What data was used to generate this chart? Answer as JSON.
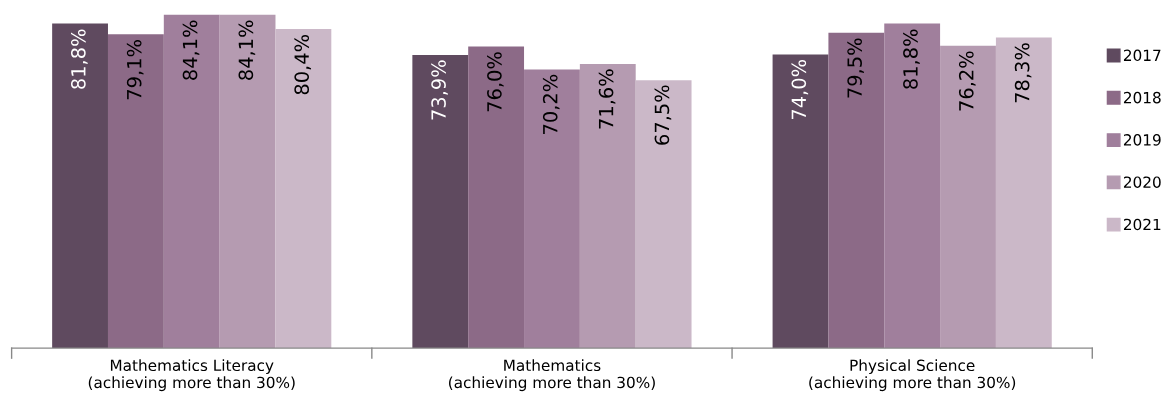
{
  "chart_data": {
    "type": "bar",
    "categories": [
      "Mathematics Literacy\n(achieving more than 30%)",
      "Mathematics\n(achieving more than 30%)",
      "Physical Science\n(achieving more than 30%)"
    ],
    "series": [
      {
        "name": "2017",
        "color": "#5f4a5f",
        "values": [
          81.8,
          73.9,
          74.0
        ],
        "value_labels": [
          "81,8%",
          "73,9%",
          "74,0%"
        ]
      },
      {
        "name": "2018",
        "color": "#8c6a87",
        "values": [
          79.1,
          76.0,
          79.5
        ],
        "value_labels": [
          "79,1%",
          "76,0%",
          "79,5%"
        ]
      },
      {
        "name": "2019",
        "color": "#a07f9c",
        "values": [
          84.1,
          70.2,
          81.8
        ],
        "value_labels": [
          "84,1%",
          "70,2%",
          "81,8%"
        ]
      },
      {
        "name": "2020",
        "color": "#b59bb1",
        "values": [
          84.1,
          71.6,
          76.2
        ],
        "value_labels": [
          "84,1%",
          "71,6%",
          "76,2%"
        ]
      },
      {
        "name": "2021",
        "color": "#cbb8c8",
        "values": [
          80.4,
          67.5,
          78.3
        ],
        "value_labels": [
          "80,4%",
          "67,5%",
          "78,3%"
        ]
      }
    ],
    "grid": false,
    "legend": "right",
    "marker": "square"
  }
}
